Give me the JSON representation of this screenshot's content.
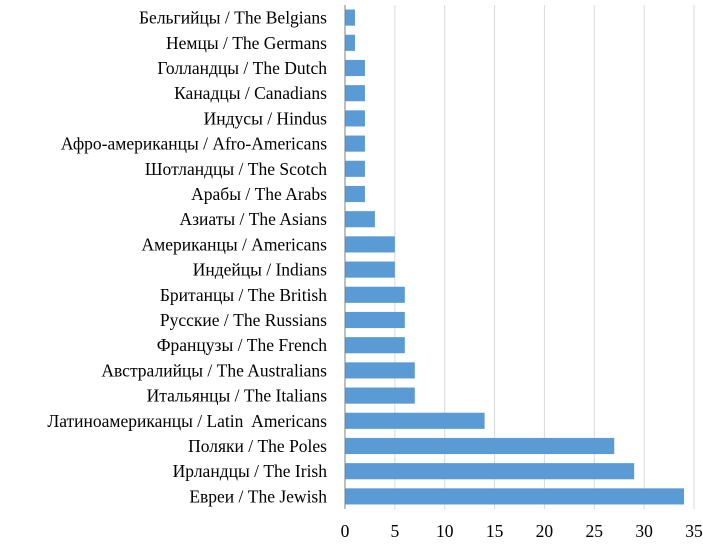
{
  "chart_data": {
    "type": "bar",
    "orientation": "horizontal",
    "categories": [
      "Бельгийцы / The Belgians",
      "Немцы / The Germans",
      "Голландцы / The Dutch",
      "Канадцы / Canadians",
      "Индусы / Hindus",
      "Афро-американцы / Afro-Americans",
      "Шотландцы / The Scotch",
      "Арабы / The Arabs",
      "Азиаты / The Asians",
      "Американцы / Americans",
      "Индейцы / Indians",
      "Британцы / The British",
      "Русские / The Russians",
      "Французы / The French",
      "Австралийцы / The Australians",
      "Итальянцы / The Italians",
      "Латиноамериканцы / Latin  Americans",
      "Поляки / The Poles",
      "Ирландцы / The Irish",
      "Евреи / The Jewish"
    ],
    "values": [
      1,
      1,
      2,
      2,
      2,
      2,
      2,
      2,
      3,
      5,
      5,
      6,
      6,
      6,
      7,
      7,
      14,
      27,
      29,
      34
    ],
    "title": "",
    "xlabel": "",
    "ylabel": "",
    "xlim": [
      0,
      35
    ],
    "xticks": [
      "0",
      "5",
      "10",
      "15",
      "20",
      "25",
      "30",
      "35"
    ],
    "grid": "vertical",
    "legend": "none",
    "bar_color": "#5b9bd5"
  }
}
